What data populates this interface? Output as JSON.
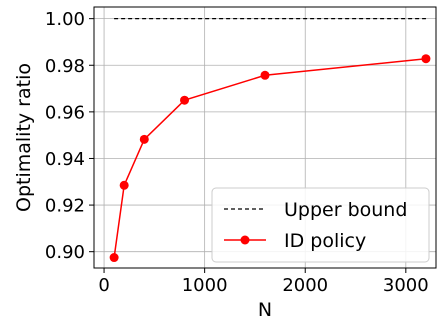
{
  "chart_data": {
    "type": "line",
    "xlabel": "N",
    "ylabel": "Optimality ratio",
    "xlim": [
      -100,
      3300
    ],
    "ylim": [
      0.893,
      1.005
    ],
    "xticks": [
      0,
      1000,
      2000,
      3000
    ],
    "xtick_labels": [
      "0",
      "1000",
      "2000",
      "3000"
    ],
    "yticks": [
      0.9,
      0.92,
      0.94,
      0.96,
      0.98,
      1.0
    ],
    "ytick_labels": [
      "0.90",
      "0.92",
      "0.94",
      "0.96",
      "0.98",
      "1.00"
    ],
    "grid": true,
    "legend_position": "lower-right",
    "series": [
      {
        "name": "Upper bound",
        "style": "dashed",
        "color": "#000000",
        "x": [
          100,
          3200
        ],
        "values": [
          1.0,
          1.0
        ]
      },
      {
        "name": "ID policy",
        "style": "solid-markers",
        "color": "#ff0000",
        "x": [
          100,
          200,
          400,
          800,
          1600,
          3200
        ],
        "values": [
          0.8975,
          0.9285,
          0.9482,
          0.965,
          0.9757,
          0.9828
        ]
      }
    ]
  }
}
